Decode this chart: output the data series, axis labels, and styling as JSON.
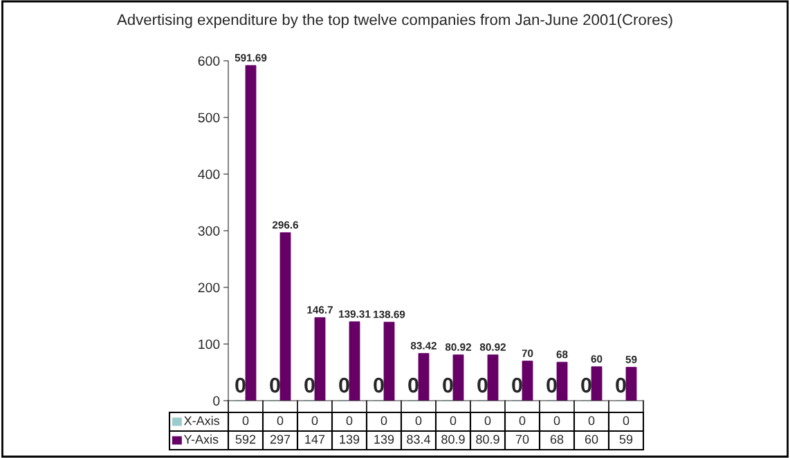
{
  "chart_data": {
    "type": "bar",
    "title": "Advertising expenditure by the top twelve companies from Jan-June 2001(Crores)",
    "categories": [
      null,
      null,
      null,
      null,
      null,
      null,
      null,
      null,
      null,
      null,
      null,
      null
    ],
    "series": [
      {
        "name": "X-Axis",
        "color": "#99cccc",
        "values": [
          0,
          0,
          0,
          0,
          0,
          0,
          0,
          0,
          0,
          0,
          0,
          0
        ],
        "value_labels": [
          "0",
          "0",
          "0",
          "0",
          "0",
          "0",
          "0",
          "0",
          "0",
          "0",
          "0",
          "0"
        ]
      },
      {
        "name": "Y-Axis",
        "color": "#660066",
        "values": [
          591.69,
          296.6,
          146.7,
          139.31,
          138.69,
          83.42,
          80.92,
          80.92,
          70,
          68,
          60,
          59
        ],
        "value_labels": [
          "591.69",
          "296.6",
          "146.7",
          "139.31",
          "138.69",
          "83.42",
          "80.92",
          "80.92",
          "70",
          "68",
          "60",
          "59"
        ]
      }
    ],
    "annotations": [
      "592",
      "297",
      "147",
      "139",
      "139",
      "83.4",
      "80.9",
      "80.9",
      "70",
      "68",
      "60",
      "59"
    ],
    "ylim": [
      0,
      600
    ],
    "yticks": [
      0,
      100,
      200,
      300,
      400,
      500,
      600
    ],
    "grid": false,
    "legend": "bottom"
  }
}
